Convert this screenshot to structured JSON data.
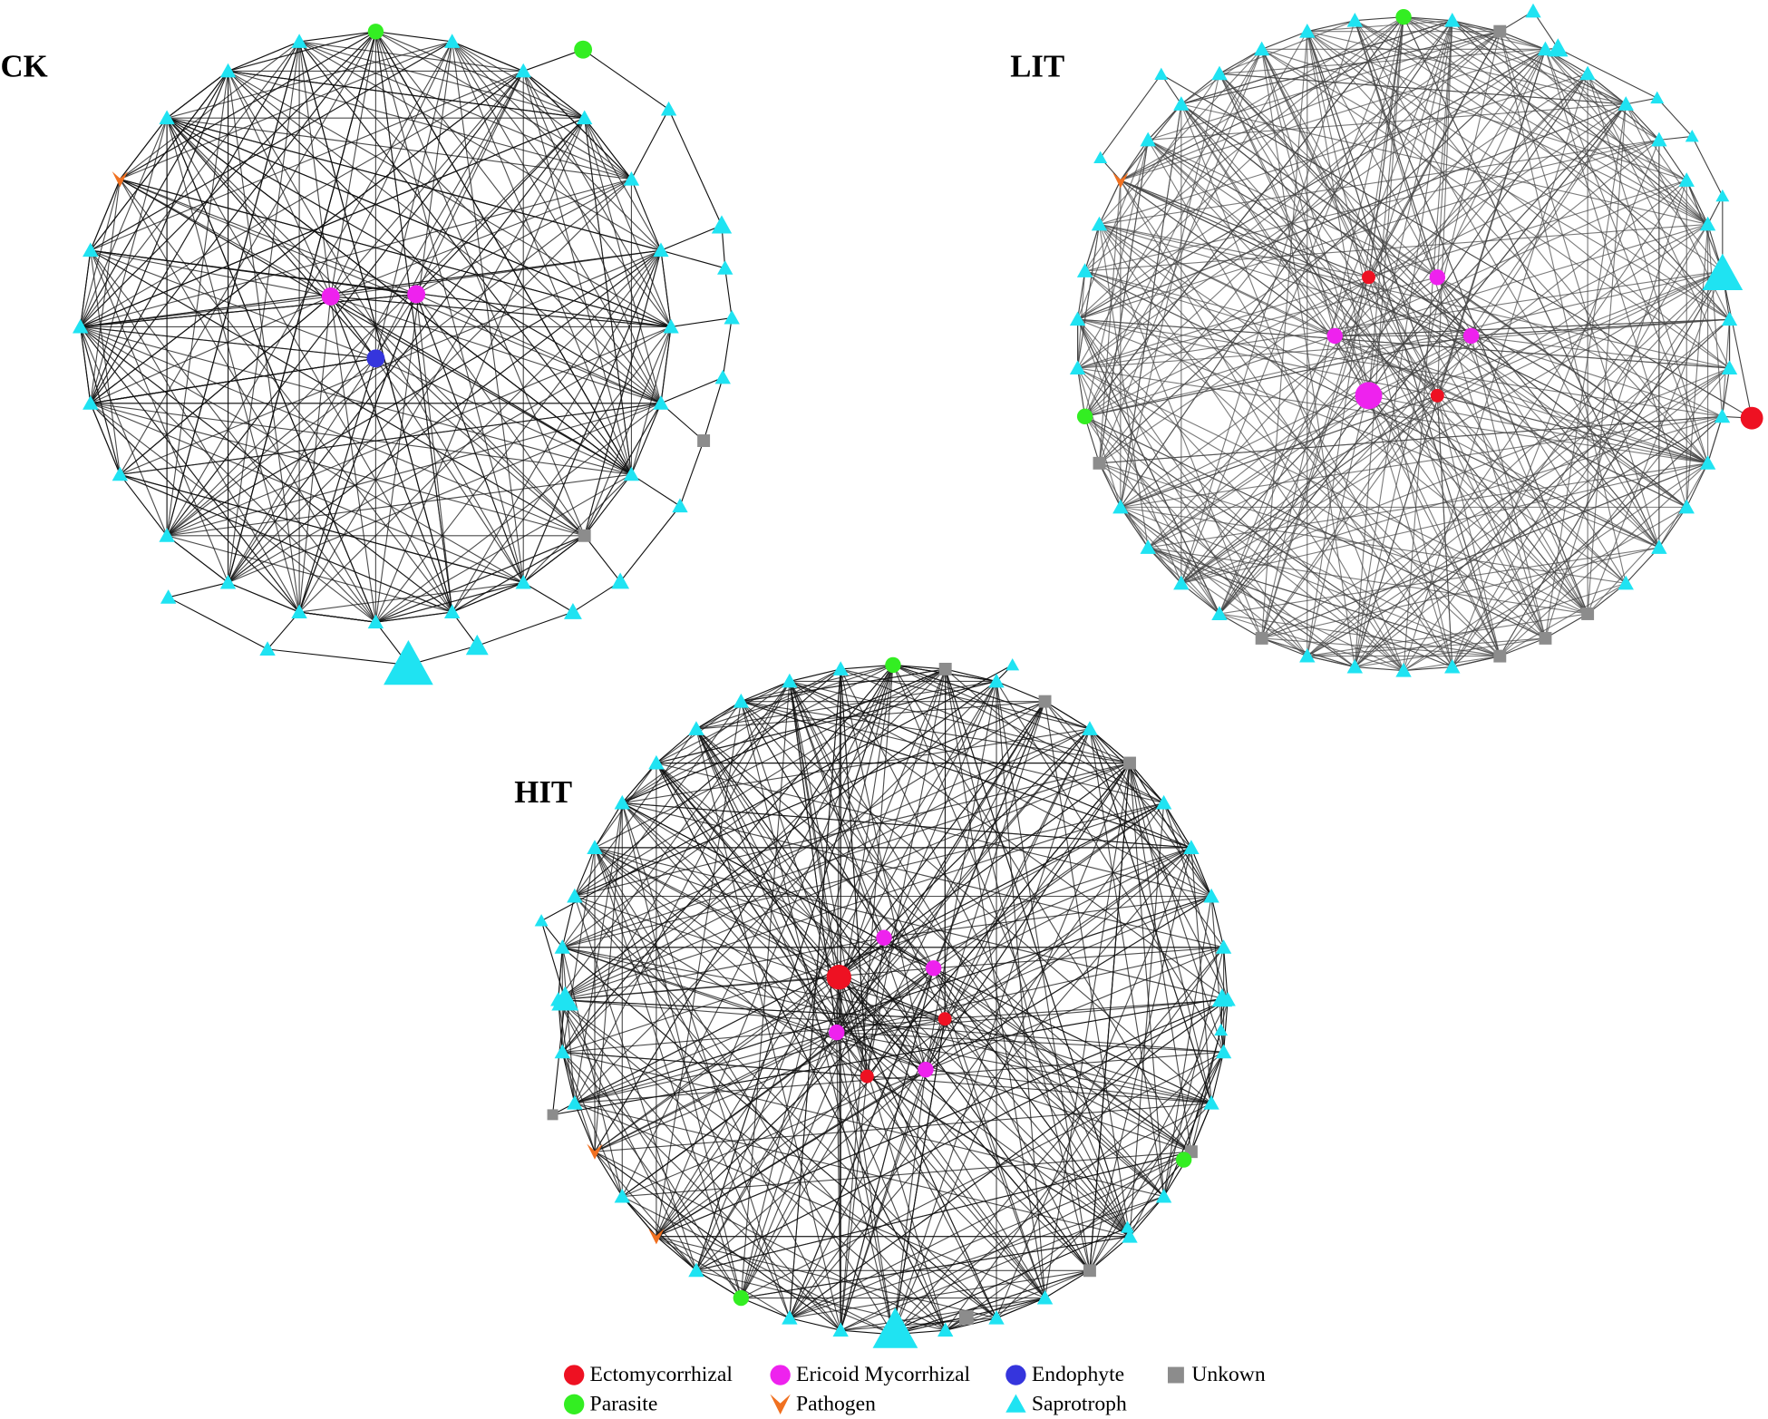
{
  "panels": [
    {
      "label": "CK"
    },
    {
      "label": "LIT"
    },
    {
      "label": "HIT"
    }
  ],
  "legend": [
    {
      "label": "Ectomycorrhizal"
    },
    {
      "label": "Ericoid Mycorrhizal"
    },
    {
      "label": "Endophyte"
    },
    {
      "label": "Unkown"
    },
    {
      "label": "Parasite"
    },
    {
      "label": "Pathogen"
    },
    {
      "label": "Saprotroph"
    }
  ]
}
